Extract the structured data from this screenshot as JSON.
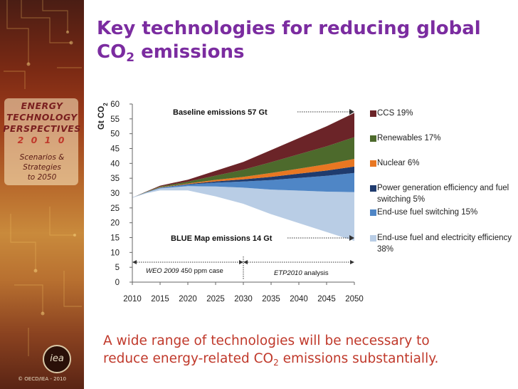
{
  "slide": {
    "title_line1": "Key technologies for reducing global",
    "title_line2_pre": "CO",
    "title_line2_sub": "2",
    "title_line2_post": " emissions",
    "footer_line1": "A wide range of technologies will be necessary to",
    "footer_line2_pre": "reduce energy-related CO",
    "footer_line2_sub": "2",
    "footer_line2_post": " emissions substantially."
  },
  "sidebar": {
    "brand_line1": "ENERGY",
    "brand_line2": "TECHNOLOGY",
    "brand_line3": "PERSPECTIVES",
    "brand_year": "2 0 1 0",
    "subtitle_line1": "Scenarios &",
    "subtitle_line2": "Strategies",
    "subtitle_line3": "to 2050",
    "logo_text": "iea",
    "copyright": "© OECD/IEA - 2010"
  },
  "chart_data": {
    "type": "area",
    "ylabel": "Gt CO2",
    "ylim": [
      0,
      60
    ],
    "yticks": [
      0,
      5,
      10,
      15,
      20,
      25,
      30,
      35,
      40,
      45,
      50,
      55,
      60
    ],
    "x_tick_labels": [
      "2010",
      "2015",
      "2020",
      "2025",
      "2030",
      "2035",
      "2040",
      "2045",
      "2050"
    ],
    "x": [
      2010,
      2012.5,
      2015,
      2017.5,
      2020,
      2025,
      2030,
      2035,
      2040,
      2045,
      2050
    ],
    "baseline_total": [
      28.5,
      30.5,
      32.5,
      33.5,
      34.5,
      37.5,
      40.5,
      44.5,
      48.5,
      52.5,
      57
    ],
    "blue_map_total": [
      28.5,
      30,
      31,
      31,
      31,
      29,
      26.5,
      23,
      20,
      17,
      14
    ],
    "stack_order_bottom_to_top": [
      "End-use fuel and electricity efficiency 38%",
      "End-use fuel switching  15%",
      "Power generation efficiency and fuel switching 5%",
      "Nuclear 6%",
      "Renewables 17%",
      "CCS 19%"
    ],
    "series": [
      {
        "name": "CCS 19%",
        "color": "#6b2428",
        "share": 19
      },
      {
        "name": "Renewables 17%",
        "color": "#4d6a2c",
        "share": 17
      },
      {
        "name": "Nuclear 6%",
        "color": "#e87722",
        "share": 6
      },
      {
        "name": "Power generation efficiency and fuel switching 5%",
        "color": "#1f3b6e",
        "share": 5
      },
      {
        "name": "End-use fuel switching  15%",
        "color": "#4f86c6",
        "share": 15
      },
      {
        "name": "End-use fuel and electricity efficiency 38%",
        "color": "#b9cde5",
        "share": 38
      }
    ],
    "legend_position": "right",
    "annotations": {
      "baseline": "Baseline emissions 57 Gt",
      "bluemap": "BLUE Map emissions 14 Gt",
      "weo_italic": "WEO 2009",
      "weo_rest": " 450 ppm case",
      "etp_italic": "ETP2010",
      "etp_rest": " analysis"
    }
  }
}
